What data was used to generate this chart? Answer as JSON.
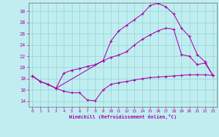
{
  "xlabel": "Windchill (Refroidissement éolien,°C)",
  "background_color": "#c0eef0",
  "grid_color": "#90d0d4",
  "line_color": "#aa00aa",
  "spine_color": "#606060",
  "xlim": [
    -0.5,
    23.5
  ],
  "ylim": [
    13.0,
    31.5
  ],
  "yticks": [
    14,
    16,
    18,
    20,
    22,
    24,
    26,
    28,
    30
  ],
  "xticks": [
    0,
    1,
    2,
    3,
    4,
    5,
    6,
    7,
    8,
    9,
    10,
    11,
    12,
    13,
    14,
    15,
    16,
    17,
    18,
    19,
    20,
    21,
    22,
    23
  ],
  "curve1_x": [
    0,
    1,
    2,
    3,
    4,
    5,
    6,
    7,
    8,
    9,
    10,
    11,
    12,
    13,
    14,
    15,
    16,
    17,
    18,
    19,
    20,
    21,
    22,
    23
  ],
  "curve1_y": [
    18.5,
    17.5,
    17.0,
    16.3,
    15.8,
    15.5,
    15.5,
    14.2,
    14.1,
    16.0,
    17.0,
    17.3,
    17.5,
    17.8,
    18.0,
    18.2,
    18.3,
    18.4,
    18.5,
    18.6,
    18.7,
    18.7,
    18.7,
    18.6
  ],
  "curve2_x": [
    0,
    1,
    2,
    3,
    4,
    5,
    6,
    7,
    8,
    9,
    10,
    11,
    12,
    13,
    14,
    15,
    16,
    17,
    18,
    19,
    20,
    21,
    22,
    23
  ],
  "curve2_y": [
    18.5,
    17.5,
    17.0,
    16.3,
    19.0,
    19.5,
    19.8,
    20.2,
    20.5,
    21.2,
    21.8,
    22.2,
    22.8,
    24.0,
    25.0,
    25.8,
    26.5,
    27.0,
    26.8,
    22.3,
    22.0,
    20.5,
    20.8,
    18.6
  ],
  "curve3_x": [
    0,
    1,
    2,
    3,
    9,
    10,
    11,
    12,
    13,
    14,
    15,
    16,
    17,
    18,
    19,
    20,
    21,
    22,
    23
  ],
  "curve3_y": [
    18.5,
    17.5,
    17.0,
    16.3,
    21.2,
    24.7,
    26.5,
    27.5,
    28.5,
    29.5,
    31.0,
    31.4,
    30.8,
    29.5,
    27.0,
    25.5,
    22.3,
    21.0,
    18.6
  ]
}
